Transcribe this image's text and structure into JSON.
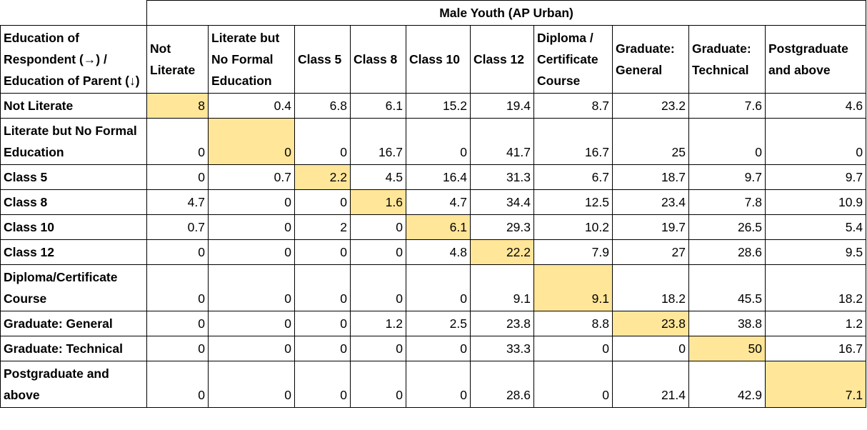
{
  "table": {
    "title": "Male Youth (AP Urban)",
    "corner_header": "Education of Respondent (→) / Education of Parent (↓)",
    "highlight_color": "#ffe699",
    "columns": [
      "Not Literate",
      "Literate but No Formal Education",
      "Class 5",
      "Class 8",
      "Class 10",
      "Class 12",
      "Diploma / Certificate Course",
      "Graduate: General",
      "Graduate: Technical",
      "Postgraduate and above"
    ],
    "rows": [
      {
        "label": "Not Literate",
        "values": [
          "8",
          "0.4",
          "6.8",
          "6.1",
          "15.2",
          "19.4",
          "8.7",
          "23.2",
          "7.6",
          "4.6"
        ]
      },
      {
        "label": "Literate but No Formal Education",
        "values": [
          "0",
          "0",
          "0",
          "16.7",
          "0",
          "41.7",
          "16.7",
          "25",
          "0",
          "0"
        ]
      },
      {
        "label": "Class 5",
        "values": [
          "0",
          "0.7",
          "2.2",
          "4.5",
          "16.4",
          "31.3",
          "6.7",
          "18.7",
          "9.7",
          "9.7"
        ]
      },
      {
        "label": "Class 8",
        "values": [
          "4.7",
          "0",
          "0",
          "1.6",
          "4.7",
          "34.4",
          "12.5",
          "23.4",
          "7.8",
          "10.9"
        ]
      },
      {
        "label": "Class 10",
        "values": [
          "0.7",
          "0",
          "2",
          "0",
          "6.1",
          "29.3",
          "10.2",
          "19.7",
          "26.5",
          "5.4"
        ]
      },
      {
        "label": "Class 12",
        "values": [
          "0",
          "0",
          "0",
          "0",
          "4.8",
          "22.2",
          "7.9",
          "27",
          "28.6",
          "9.5"
        ]
      },
      {
        "label": "Diploma/Certificate Course",
        "values": [
          "0",
          "0",
          "0",
          "0",
          "0",
          "9.1",
          "9.1",
          "18.2",
          "45.5",
          "18.2"
        ]
      },
      {
        "label": "Graduate: General",
        "values": [
          "0",
          "0",
          "0",
          "1.2",
          "2.5",
          "23.8",
          "8.8",
          "23.8",
          "38.8",
          "1.2"
        ]
      },
      {
        "label": "Graduate: Technical",
        "values": [
          "0",
          "0",
          "0",
          "0",
          "0",
          "33.3",
          "0",
          "0",
          "50",
          "16.7"
        ]
      },
      {
        "label": "Postgraduate and above",
        "values": [
          "0",
          "0",
          "0",
          "0",
          "0",
          "28.6",
          "0",
          "21.4",
          "42.9",
          "7.1"
        ]
      }
    ]
  }
}
